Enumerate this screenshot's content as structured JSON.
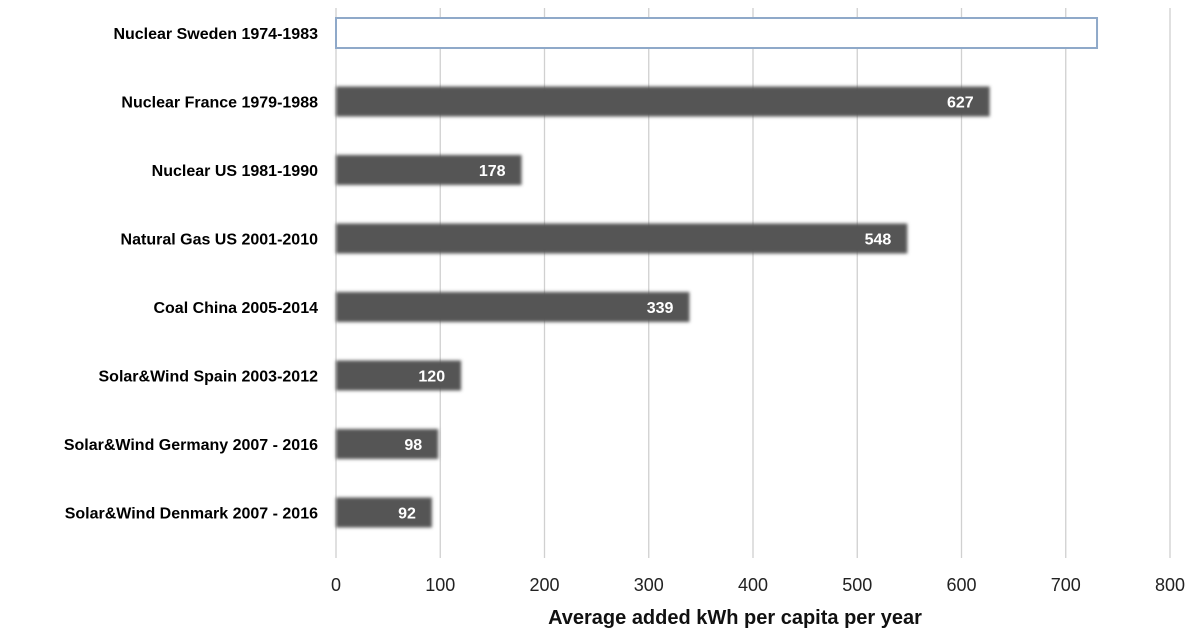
{
  "chart_data": {
    "type": "bar",
    "orientation": "horizontal",
    "title": "",
    "xlabel": "Average added kWh per capita per year",
    "ylabel": "",
    "categories": [
      "Nuclear Sweden 1974-1983",
      "Nuclear France 1979-1988",
      "Nuclear US 1981-1990",
      "Natural Gas US 2001-2010",
      "Coal China 2005-2014",
      "Solar&Wind Spain 2003-2012",
      "Solar&Wind Germany 2007 - 2016",
      "Solar&Wind Denmark 2007 - 2016"
    ],
    "values": [
      730,
      627,
      178,
      548,
      339,
      120,
      98,
      92
    ],
    "data_labels": [
      "",
      "627",
      "178",
      "548",
      "339",
      "120",
      "98",
      "92"
    ],
    "xlim": [
      0,
      800
    ],
    "xticks": [
      0,
      100,
      200,
      300,
      400,
      500,
      600,
      700,
      800
    ],
    "grid": "vertical",
    "legend": "none",
    "highlighted_category": "Nuclear Sweden 1974-1983",
    "colors": {
      "bar": "#555555",
      "highlight_fill": "#ffffff",
      "highlight_border": "#8fa9c9",
      "grid": "#d0d0d0",
      "value_label": "#ffffff"
    }
  }
}
